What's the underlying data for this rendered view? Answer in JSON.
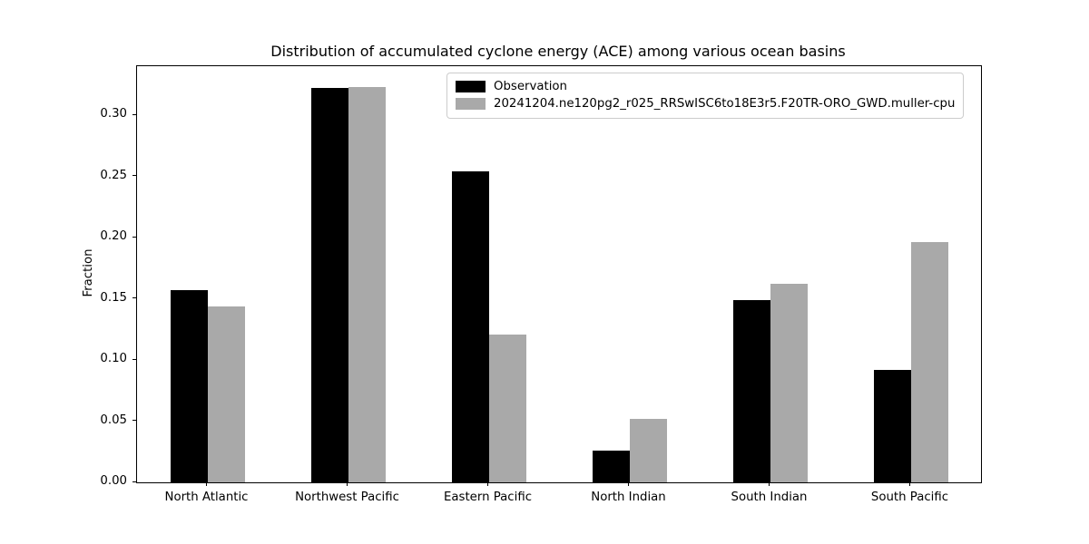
{
  "chart_data": {
    "type": "bar",
    "title": "Distribution of accumulated cyclone energy (ACE) among various ocean basins",
    "xlabel": "",
    "ylabel": "Fraction",
    "categories": [
      "North Atlantic",
      "Northwest Pacific",
      "Eastern Pacific",
      "North Indian",
      "South Indian",
      "South Pacific"
    ],
    "series": [
      {
        "name": "Observation",
        "color": "#000000",
        "values": [
          0.157,
          0.322,
          0.254,
          0.026,
          0.149,
          0.092
        ]
      },
      {
        "name": "20241204.ne120pg2_r025_RRSwISC6to18E3r5.F20TR-ORO_GWD.muller-cpu",
        "color": "#a9a9a9",
        "values": [
          0.144,
          0.323,
          0.121,
          0.052,
          0.162,
          0.196
        ]
      }
    ],
    "ylim": [
      0,
      0.34
    ],
    "yticks": [
      0.0,
      0.05,
      0.1,
      0.15,
      0.2,
      0.25,
      0.3
    ],
    "ytick_labels": [
      "0.00",
      "0.05",
      "0.10",
      "0.15",
      "0.20",
      "0.25",
      "0.30"
    ],
    "grid": false,
    "legend_position": "upper right inside plot",
    "background_color": "#ffffff"
  }
}
